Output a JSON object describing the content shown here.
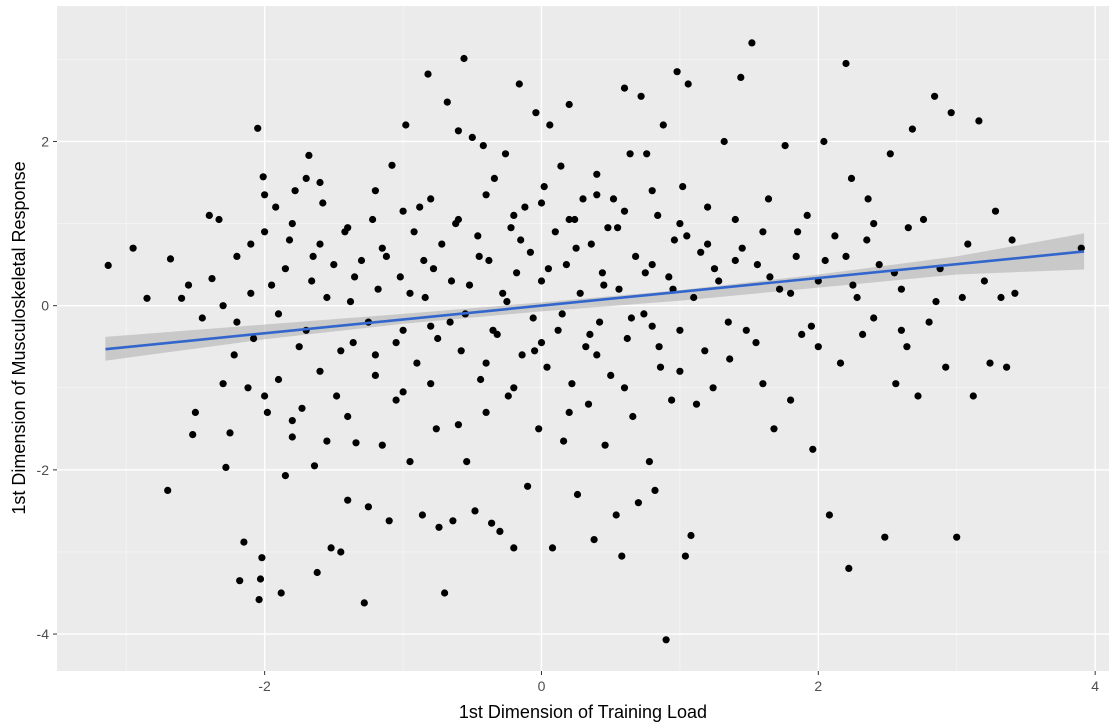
{
  "chart_data": {
    "type": "scatter",
    "title": "",
    "xlabel": "1st Dimension of Training Load",
    "ylabel": "1st Dimension of Musculoskeletal Response",
    "xlim": [
      -3.5,
      4.1
    ],
    "ylim": [
      -4.45,
      3.65
    ],
    "x_ticks": [
      -2,
      0,
      2,
      4
    ],
    "y_ticks": [
      -4,
      -2,
      0,
      2
    ],
    "x_tick_labels": [
      "-2",
      "0",
      "2",
      "4"
    ],
    "y_tick_labels": [
      "-4",
      "-2",
      "0",
      "2"
    ],
    "grid": true,
    "legend": "none",
    "colors": {
      "panel": "#ebebeb",
      "grid_major": "#ffffff",
      "grid_minor": "#f5f5f5",
      "point": "#000000",
      "fit_line": "#3366cc",
      "ribbon": "#b3b3b3"
    },
    "fit_line": {
      "method": "lm",
      "x": [
        -3.15,
        3.92
      ],
      "y": [
        -0.53,
        0.66
      ]
    },
    "confidence_band": {
      "x": [
        -3.15,
        -2.0,
        -1.0,
        0.0,
        1.0,
        2.0,
        3.0,
        3.92
      ],
      "lower": [
        -0.67,
        -0.41,
        -0.22,
        -0.07,
        0.06,
        0.22,
        0.38,
        0.44
      ],
      "upper": [
        -0.38,
        -0.23,
        -0.1,
        0.04,
        0.19,
        0.38,
        0.6,
        0.88
      ]
    },
    "points": [
      {
        "x": -3.13,
        "y": 0.49
      },
      {
        "x": -2.95,
        "y": 0.7
      },
      {
        "x": -2.85,
        "y": 0.09
      },
      {
        "x": -2.7,
        "y": -2.25
      },
      {
        "x": -2.68,
        "y": 0.57
      },
      {
        "x": -2.6,
        "y": 0.09
      },
      {
        "x": -2.55,
        "y": 0.25
      },
      {
        "x": -2.52,
        "y": -1.57
      },
      {
        "x": -2.5,
        "y": -1.3
      },
      {
        "x": -2.45,
        "y": -0.15
      },
      {
        "x": -2.4,
        "y": 1.1
      },
      {
        "x": -2.38,
        "y": 0.33
      },
      {
        "x": -2.33,
        "y": 1.05
      },
      {
        "x": -2.3,
        "y": -0.95
      },
      {
        "x": -2.28,
        "y": -1.97
      },
      {
        "x": -2.25,
        "y": -1.55
      },
      {
        "x": -2.22,
        "y": -0.6
      },
      {
        "x": -2.2,
        "y": 0.6
      },
      {
        "x": -2.18,
        "y": -3.35
      },
      {
        "x": -2.15,
        "y": -2.88
      },
      {
        "x": -2.12,
        "y": -1.0
      },
      {
        "x": -2.1,
        "y": 0.15
      },
      {
        "x": -2.08,
        "y": -0.4
      },
      {
        "x": -2.05,
        "y": 2.16
      },
      {
        "x": -2.04,
        "y": -3.58
      },
      {
        "x": -2.03,
        "y": -3.33
      },
      {
        "x": -2.02,
        "y": -3.07
      },
      {
        "x": -2.01,
        "y": 1.57
      },
      {
        "x": -1.98,
        "y": -1.3
      },
      {
        "x": -1.95,
        "y": 0.25
      },
      {
        "x": -1.92,
        "y": 1.2
      },
      {
        "x": -1.9,
        "y": -0.9
      },
      {
        "x": -1.88,
        "y": -3.5
      },
      {
        "x": -1.85,
        "y": -2.07
      },
      {
        "x": -1.82,
        "y": 0.8
      },
      {
        "x": -1.8,
        "y": -1.4
      },
      {
        "x": -1.78,
        "y": 1.4
      },
      {
        "x": -1.75,
        "y": -0.5
      },
      {
        "x": -1.73,
        "y": -1.25
      },
      {
        "x": -1.7,
        "y": 1.55
      },
      {
        "x": -1.68,
        "y": 1.83
      },
      {
        "x": -1.66,
        "y": 0.3
      },
      {
        "x": -1.64,
        "y": -1.95
      },
      {
        "x": -1.62,
        "y": -3.25
      },
      {
        "x": -1.6,
        "y": 0.75
      },
      {
        "x": -1.58,
        "y": 1.25
      },
      {
        "x": -1.55,
        "y": -1.65
      },
      {
        "x": -1.52,
        "y": -2.95
      },
      {
        "x": -1.5,
        "y": 0.5
      },
      {
        "x": -1.48,
        "y": -1.1
      },
      {
        "x": -1.45,
        "y": -3.0
      },
      {
        "x": -1.42,
        "y": 0.9
      },
      {
        "x": -1.4,
        "y": -2.37
      },
      {
        "x": -1.38,
        "y": 0.05
      },
      {
        "x": -1.36,
        "y": -0.45
      },
      {
        "x": -1.34,
        "y": -1.67
      },
      {
        "x": -1.3,
        "y": 0.55
      },
      {
        "x": -1.28,
        "y": -3.62
      },
      {
        "x": -1.25,
        "y": -2.45
      },
      {
        "x": -1.22,
        "y": 1.05
      },
      {
        "x": -1.2,
        "y": -0.85
      },
      {
        "x": -1.18,
        "y": 0.2
      },
      {
        "x": -1.15,
        "y": -1.7
      },
      {
        "x": -1.12,
        "y": 0.6
      },
      {
        "x": -1.1,
        "y": -2.62
      },
      {
        "x": -1.08,
        "y": 1.71
      },
      {
        "x": -1.05,
        "y": -1.15
      },
      {
        "x": -1.02,
        "y": 0.35
      },
      {
        "x": -1.0,
        "y": -0.3
      },
      {
        "x": -0.98,
        "y": 2.2
      },
      {
        "x": -0.95,
        "y": -1.9
      },
      {
        "x": -0.92,
        "y": 0.9
      },
      {
        "x": -0.9,
        "y": -0.7
      },
      {
        "x": -0.88,
        "y": 1.2
      },
      {
        "x": -0.86,
        "y": -2.55
      },
      {
        "x": -0.84,
        "y": 0.1
      },
      {
        "x": -0.82,
        "y": 2.82
      },
      {
        "x": -0.8,
        "y": -0.95
      },
      {
        "x": -0.78,
        "y": 0.45
      },
      {
        "x": -0.76,
        "y": -1.5
      },
      {
        "x": -0.74,
        "y": -2.7
      },
      {
        "x": -0.72,
        "y": 0.75
      },
      {
        "x": -0.7,
        "y": -3.5
      },
      {
        "x": -0.68,
        "y": 2.48
      },
      {
        "x": -0.66,
        "y": -0.2
      },
      {
        "x": -0.64,
        "y": -2.62
      },
      {
        "x": -0.62,
        "y": 1.0
      },
      {
        "x": -0.6,
        "y": 2.13
      },
      {
        "x": -0.58,
        "y": -0.55
      },
      {
        "x": -0.56,
        "y": 3.01
      },
      {
        "x": -0.54,
        "y": -1.9
      },
      {
        "x": -0.52,
        "y": 0.25
      },
      {
        "x": -0.5,
        "y": 2.05
      },
      {
        "x": -0.48,
        "y": -2.5
      },
      {
        "x": -0.46,
        "y": 0.85
      },
      {
        "x": -0.44,
        "y": -0.9
      },
      {
        "x": -0.42,
        "y": 1.95
      },
      {
        "x": -0.4,
        "y": -1.3
      },
      {
        "x": -0.38,
        "y": 0.55
      },
      {
        "x": -0.36,
        "y": -2.65
      },
      {
        "x": -0.34,
        "y": 1.55
      },
      {
        "x": -0.32,
        "y": -0.35
      },
      {
        "x": -0.3,
        "y": -2.75
      },
      {
        "x": -0.28,
        "y": 0.15
      },
      {
        "x": -0.26,
        "y": 1.85
      },
      {
        "x": -0.24,
        "y": -1.1
      },
      {
        "x": -0.22,
        "y": 0.95
      },
      {
        "x": -0.2,
        "y": -2.95
      },
      {
        "x": -0.18,
        "y": 0.4
      },
      {
        "x": -0.16,
        "y": 2.7
      },
      {
        "x": -0.14,
        "y": -0.6
      },
      {
        "x": -0.12,
        "y": 1.2
      },
      {
        "x": -0.1,
        "y": -2.2
      },
      {
        "x": -0.08,
        "y": 0.65
      },
      {
        "x": -0.06,
        "y": -0.15
      },
      {
        "x": -0.04,
        "y": 2.35
      },
      {
        "x": -0.02,
        "y": -1.5
      },
      {
        "x": 0.0,
        "y": 0.3
      },
      {
        "x": 0.02,
        "y": 1.45
      },
      {
        "x": 0.04,
        "y": -0.75
      },
      {
        "x": 0.06,
        "y": 2.2
      },
      {
        "x": 0.08,
        "y": -2.95
      },
      {
        "x": 0.1,
        "y": 0.9
      },
      {
        "x": 0.12,
        "y": -0.3
      },
      {
        "x": 0.14,
        "y": 1.7
      },
      {
        "x": 0.16,
        "y": -1.65
      },
      {
        "x": 0.18,
        "y": 0.5
      },
      {
        "x": 0.2,
        "y": 2.45
      },
      {
        "x": 0.22,
        "y": -0.95
      },
      {
        "x": 0.24,
        "y": 1.05
      },
      {
        "x": 0.26,
        "y": -2.3
      },
      {
        "x": 0.28,
        "y": 0.15
      },
      {
        "x": 0.3,
        "y": 1.3
      },
      {
        "x": 0.32,
        "y": -0.5
      },
      {
        "x": 0.34,
        "y": -1.2
      },
      {
        "x": 0.36,
        "y": 0.75
      },
      {
        "x": 0.38,
        "y": -2.85
      },
      {
        "x": 0.4,
        "y": 1.6
      },
      {
        "x": 0.42,
        "y": -0.2
      },
      {
        "x": 0.44,
        "y": 0.4
      },
      {
        "x": 0.46,
        "y": -1.7
      },
      {
        "x": 0.48,
        "y": 0.95
      },
      {
        "x": 0.5,
        "y": -0.85
      },
      {
        "x": 0.52,
        "y": 1.3
      },
      {
        "x": 0.54,
        "y": -2.55
      },
      {
        "x": 0.56,
        "y": 0.2
      },
      {
        "x": 0.58,
        "y": -3.05
      },
      {
        "x": 0.6,
        "y": 2.65
      },
      {
        "x": 0.62,
        "y": -0.4
      },
      {
        "x": 0.64,
        "y": 1.85
      },
      {
        "x": 0.66,
        "y": -1.35
      },
      {
        "x": 0.68,
        "y": 0.6
      },
      {
        "x": 0.7,
        "y": -2.4
      },
      {
        "x": 0.72,
        "y": 2.55
      },
      {
        "x": 0.74,
        "y": -0.1
      },
      {
        "x": 0.76,
        "y": 1.85
      },
      {
        "x": 0.78,
        "y": -1.9
      },
      {
        "x": 0.8,
        "y": 0.5
      },
      {
        "x": 0.82,
        "y": -2.25
      },
      {
        "x": 0.84,
        "y": 1.1
      },
      {
        "x": 0.86,
        "y": -0.75
      },
      {
        "x": 0.88,
        "y": 2.2
      },
      {
        "x": 0.9,
        "y": -4.07
      },
      {
        "x": 0.92,
        "y": 0.35
      },
      {
        "x": 0.94,
        "y": -1.15
      },
      {
        "x": 0.96,
        "y": 0.8
      },
      {
        "x": 0.98,
        "y": 2.85
      },
      {
        "x": 1.0,
        "y": -0.3
      },
      {
        "x": 1.02,
        "y": 1.45
      },
      {
        "x": 1.04,
        "y": -3.05
      },
      {
        "x": 1.06,
        "y": 2.7
      },
      {
        "x": 1.08,
        "y": -2.8
      },
      {
        "x": 1.1,
        "y": 0.1
      },
      {
        "x": 1.12,
        "y": -1.2
      },
      {
        "x": 1.15,
        "y": 0.65
      },
      {
        "x": 1.18,
        "y": -0.55
      },
      {
        "x": 1.2,
        "y": 1.2
      },
      {
        "x": 1.24,
        "y": -1.0
      },
      {
        "x": 1.28,
        "y": 0.3
      },
      {
        "x": 1.32,
        "y": 2.0
      },
      {
        "x": 1.36,
        "y": -0.65
      },
      {
        "x": 1.4,
        "y": 1.05
      },
      {
        "x": 1.44,
        "y": 2.78
      },
      {
        "x": 1.48,
        "y": -0.3
      },
      {
        "x": 1.52,
        "y": 3.2
      },
      {
        "x": 1.56,
        "y": 0.5
      },
      {
        "x": 1.6,
        "y": -0.95
      },
      {
        "x": 1.64,
        "y": 1.3
      },
      {
        "x": 1.68,
        "y": -1.5
      },
      {
        "x": 1.72,
        "y": 0.2
      },
      {
        "x": 1.76,
        "y": 1.95
      },
      {
        "x": 1.8,
        "y": -1.15
      },
      {
        "x": 1.84,
        "y": 0.6
      },
      {
        "x": 1.88,
        "y": -0.35
      },
      {
        "x": 1.92,
        "y": 1.1
      },
      {
        "x": 1.96,
        "y": -1.75
      },
      {
        "x": 2.0,
        "y": 0.3
      },
      {
        "x": 2.04,
        "y": 2.0
      },
      {
        "x": 2.08,
        "y": -2.55
      },
      {
        "x": 2.12,
        "y": 0.85
      },
      {
        "x": 2.16,
        "y": -0.7
      },
      {
        "x": 2.2,
        "y": 2.95
      },
      {
        "x": 2.22,
        "y": -3.2
      },
      {
        "x": 2.24,
        "y": 1.55
      },
      {
        "x": 2.28,
        "y": 0.1
      },
      {
        "x": 2.32,
        "y": -0.35
      },
      {
        "x": 2.36,
        "y": 1.3
      },
      {
        "x": 2.4,
        "y": -0.15
      },
      {
        "x": 2.44,
        "y": 0.5
      },
      {
        "x": 2.48,
        "y": -2.82
      },
      {
        "x": 2.52,
        "y": 1.85
      },
      {
        "x": 2.56,
        "y": -0.95
      },
      {
        "x": 2.6,
        "y": 0.2
      },
      {
        "x": 2.64,
        "y": -0.5
      },
      {
        "x": 2.68,
        "y": 2.15
      },
      {
        "x": 2.72,
        "y": -1.1
      },
      {
        "x": 2.76,
        "y": 1.05
      },
      {
        "x": 2.8,
        "y": -0.2
      },
      {
        "x": 2.84,
        "y": 2.55
      },
      {
        "x": 2.88,
        "y": 0.45
      },
      {
        "x": 2.92,
        "y": -0.75
      },
      {
        "x": 2.96,
        "y": 2.35
      },
      {
        "x": 3.0,
        "y": -2.82
      },
      {
        "x": 3.04,
        "y": 0.1
      },
      {
        "x": 3.08,
        "y": 0.75
      },
      {
        "x": 3.12,
        "y": -1.1
      },
      {
        "x": 3.16,
        "y": 2.25
      },
      {
        "x": 3.2,
        "y": 0.3
      },
      {
        "x": 3.24,
        "y": -0.7
      },
      {
        "x": 3.28,
        "y": 1.15
      },
      {
        "x": 3.32,
        "y": 0.1
      },
      {
        "x": 3.36,
        "y": -0.75
      },
      {
        "x": 3.4,
        "y": 0.8
      },
      {
        "x": 3.42,
        "y": 0.15
      },
      {
        "x": 3.9,
        "y": 0.7
      },
      {
        "x": -2.3,
        "y": 0.0
      },
      {
        "x": -2.2,
        "y": -0.2
      },
      {
        "x": -2.1,
        "y": 0.75
      },
      {
        "x": -2.0,
        "y": 0.9
      },
      {
        "x": -1.9,
        "y": -0.1
      },
      {
        "x": -1.85,
        "y": 0.45
      },
      {
        "x": -1.7,
        "y": -0.3
      },
      {
        "x": -1.65,
        "y": 0.6
      },
      {
        "x": -1.55,
        "y": 0.1
      },
      {
        "x": -1.45,
        "y": -0.55
      },
      {
        "x": -1.35,
        "y": 0.35
      },
      {
        "x": -1.25,
        "y": -0.2
      },
      {
        "x": -1.15,
        "y": 0.7
      },
      {
        "x": -1.05,
        "y": -0.45
      },
      {
        "x": -0.95,
        "y": 0.15
      },
      {
        "x": -0.85,
        "y": 0.55
      },
      {
        "x": -0.75,
        "y": -0.4
      },
      {
        "x": -0.65,
        "y": 0.3
      },
      {
        "x": -0.55,
        "y": -0.1
      },
      {
        "x": -0.45,
        "y": 0.6
      },
      {
        "x": -0.35,
        "y": -0.3
      },
      {
        "x": -0.25,
        "y": 0.05
      },
      {
        "x": -0.15,
        "y": 0.8
      },
      {
        "x": -0.05,
        "y": -0.55
      },
      {
        "x": 0.05,
        "y": 0.45
      },
      {
        "x": 0.15,
        "y": -0.1
      },
      {
        "x": 0.25,
        "y": 0.7
      },
      {
        "x": 0.35,
        "y": -0.35
      },
      {
        "x": 0.45,
        "y": 0.25
      },
      {
        "x": 0.55,
        "y": 0.95
      },
      {
        "x": 0.65,
        "y": -0.15
      },
      {
        "x": 0.75,
        "y": 0.4
      },
      {
        "x": 0.85,
        "y": -0.5
      },
      {
        "x": 0.95,
        "y": 0.2
      },
      {
        "x": 1.05,
        "y": 0.85
      },
      {
        "x": 1.25,
        "y": 0.45
      },
      {
        "x": 1.35,
        "y": -0.2
      },
      {
        "x": 1.45,
        "y": 0.7
      },
      {
        "x": 1.55,
        "y": -0.45
      },
      {
        "x": 1.65,
        "y": 0.35
      },
      {
        "x": 1.85,
        "y": 0.9
      },
      {
        "x": 1.95,
        "y": -0.25
      },
      {
        "x": 2.05,
        "y": 0.55
      },
      {
        "x": 2.25,
        "y": 0.25
      },
      {
        "x": 2.35,
        "y": 0.8
      },
      {
        "x": 2.55,
        "y": 0.4
      },
      {
        "x": 2.65,
        "y": 0.95
      },
      {
        "x": 2.85,
        "y": 0.05
      },
      {
        "x": -2.0,
        "y": -1.1
      },
      {
        "x": -1.8,
        "y": -1.6
      },
      {
        "x": -1.6,
        "y": -0.8
      },
      {
        "x": -1.4,
        "y": -1.35
      },
      {
        "x": -1.2,
        "y": -0.6
      },
      {
        "x": -1.0,
        "y": -1.05
      },
      {
        "x": -0.8,
        "y": -0.25
      },
      {
        "x": -0.6,
        "y": -1.45
      },
      {
        "x": -0.4,
        "y": -0.7
      },
      {
        "x": -0.2,
        "y": -1.0
      },
      {
        "x": 0.0,
        "y": -0.45
      },
      {
        "x": 0.2,
        "y": -1.3
      },
      {
        "x": 0.4,
        "y": -0.6
      },
      {
        "x": 0.6,
        "y": -1.0
      },
      {
        "x": 0.8,
        "y": -0.25
      },
      {
        "x": 1.0,
        "y": -0.8
      },
      {
        "x": -2.0,
        "y": 1.35
      },
      {
        "x": -1.8,
        "y": 1.0
      },
      {
        "x": -1.6,
        "y": 1.5
      },
      {
        "x": -1.4,
        "y": 0.95
      },
      {
        "x": -1.2,
        "y": 1.4
      },
      {
        "x": -1.0,
        "y": 1.15
      },
      {
        "x": -0.8,
        "y": 1.3
      },
      {
        "x": -0.6,
        "y": 1.05
      },
      {
        "x": -0.4,
        "y": 1.35
      },
      {
        "x": -0.2,
        "y": 1.1
      },
      {
        "x": 0.0,
        "y": 1.25
      },
      {
        "x": 0.2,
        "y": 1.05
      },
      {
        "x": 0.4,
        "y": 1.35
      },
      {
        "x": 0.6,
        "y": 1.15
      },
      {
        "x": 0.8,
        "y": 1.4
      },
      {
        "x": 1.0,
        "y": 1.0
      },
      {
        "x": 1.2,
        "y": 0.75
      },
      {
        "x": 1.4,
        "y": 0.55
      },
      {
        "x": 1.6,
        "y": 0.9
      },
      {
        "x": 1.8,
        "y": 0.15
      },
      {
        "x": 2.0,
        "y": -0.5
      },
      {
        "x": 2.2,
        "y": 0.6
      },
      {
        "x": 2.4,
        "y": 1.0
      },
      {
        "x": 2.6,
        "y": -0.3
      }
    ]
  }
}
